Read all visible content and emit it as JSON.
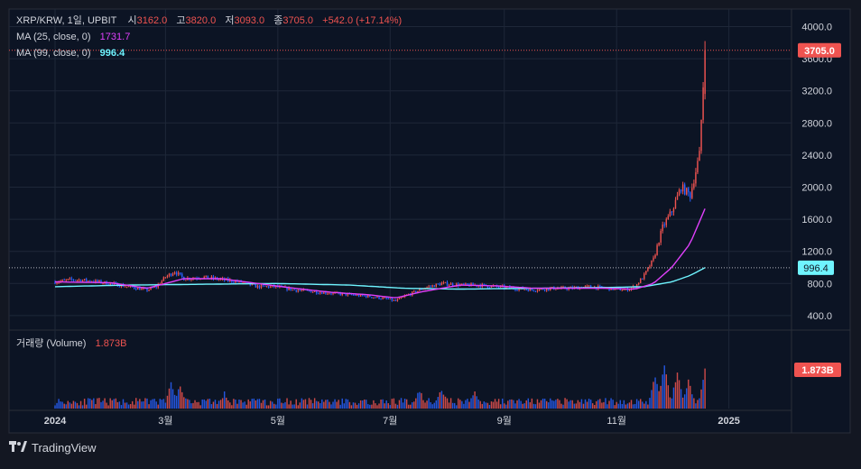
{
  "header": {
    "symbol": "XRP/KRW, 1일, UPBIT",
    "open_label": "시",
    "open": "3162.0",
    "high_label": "고",
    "high": "3820.0",
    "low_label": "저",
    "low": "3093.0",
    "close_label": "종",
    "close": "3705.0",
    "change": "+542.0 (+17.14%)"
  },
  "ma25": {
    "label": "MA (25, close, 0)",
    "value": "1731.7"
  },
  "ma99": {
    "label": "MA (99, close, 0)",
    "value": "996.4"
  },
  "volume_pane": {
    "label": "거래량 (Volume)",
    "value": "1.873B"
  },
  "price_tag": "3705.0",
  "ma99_tag": "996.4",
  "volume_tag": "1.873B",
  "brand": "TradingView",
  "colors": {
    "background": "#0c1424",
    "up": "#ef5350",
    "down": "#2962ff",
    "ma25": "#e040fb",
    "ma99": "#6ff4ff",
    "grid": "#1e2738"
  },
  "chart_data": {
    "type": "candlestick",
    "y_axis_ticks": [
      "4000.0",
      "3600.0",
      "3200.0",
      "2800.0",
      "2400.0",
      "2000.0",
      "1600.0",
      "1200.0",
      "800.0",
      "400.0"
    ],
    "ylim": [
      200,
      4000
    ],
    "x_axis_ticks": [
      "2024",
      "3월",
      "5월",
      "7월",
      "9월",
      "11월",
      "2025"
    ],
    "x_tick_days": [
      0,
      60,
      121,
      182,
      244,
      305,
      366
    ],
    "xlim": [
      -25,
      400
    ],
    "last_day": 353,
    "price_keypoints": [
      [
        0,
        820
      ],
      [
        10,
        850
      ],
      [
        20,
        830
      ],
      [
        30,
        800
      ],
      [
        40,
        760
      ],
      [
        50,
        720
      ],
      [
        55,
        760
      ],
      [
        60,
        880
      ],
      [
        65,
        950
      ],
      [
        70,
        860
      ],
      [
        80,
        880
      ],
      [
        90,
        850
      ],
      [
        100,
        820
      ],
      [
        110,
        760
      ],
      [
        120,
        760
      ],
      [
        130,
        720
      ],
      [
        140,
        700
      ],
      [
        150,
        680
      ],
      [
        160,
        660
      ],
      [
        170,
        640
      ],
      [
        180,
        610
      ],
      [
        185,
        580
      ],
      [
        190,
        640
      ],
      [
        200,
        740
      ],
      [
        210,
        800
      ],
      [
        220,
        780
      ],
      [
        230,
        780
      ],
      [
        240,
        760
      ],
      [
        250,
        740
      ],
      [
        260,
        720
      ],
      [
        270,
        740
      ],
      [
        280,
        740
      ],
      [
        290,
        760
      ],
      [
        300,
        740
      ],
      [
        310,
        720
      ],
      [
        315,
        760
      ],
      [
        320,
        900
      ],
      [
        325,
        1100
      ],
      [
        330,
        1500
      ],
      [
        335,
        1700
      ],
      [
        340,
        2000
      ],
      [
        345,
        1900
      ],
      [
        350,
        2400
      ],
      [
        353,
        3705
      ]
    ],
    "ma25_keypoints": [
      [
        0,
        820
      ],
      [
        30,
        810
      ],
      [
        50,
        740
      ],
      [
        70,
        860
      ],
      [
        90,
        860
      ],
      [
        110,
        800
      ],
      [
        130,
        740
      ],
      [
        150,
        690
      ],
      [
        170,
        660
      ],
      [
        185,
        620
      ],
      [
        200,
        700
      ],
      [
        220,
        780
      ],
      [
        240,
        770
      ],
      [
        260,
        740
      ],
      [
        280,
        740
      ],
      [
        300,
        740
      ],
      [
        315,
        730
      ],
      [
        325,
        800
      ],
      [
        335,
        1000
      ],
      [
        345,
        1300
      ],
      [
        353,
        1731.7
      ]
    ],
    "ma99_keypoints": [
      [
        0,
        760
      ],
      [
        40,
        780
      ],
      [
        80,
        790
      ],
      [
        120,
        800
      ],
      [
        160,
        780
      ],
      [
        190,
        740
      ],
      [
        220,
        730
      ],
      [
        260,
        740
      ],
      [
        300,
        750
      ],
      [
        320,
        760
      ],
      [
        335,
        820
      ],
      [
        345,
        900
      ],
      [
        353,
        996.4
      ]
    ],
    "volume_max": 3.5,
    "volume_ticks_note": "",
    "last_volume": 1.873,
    "volume_spikes": [
      [
        63,
        1.2
      ],
      [
        68,
        1.1
      ],
      [
        92,
        0.7
      ],
      [
        198,
        0.8
      ],
      [
        210,
        0.9
      ],
      [
        228,
        0.8
      ],
      [
        326,
        1.6
      ],
      [
        331,
        2.2
      ],
      [
        338,
        1.8
      ],
      [
        344,
        1.4
      ],
      [
        353,
        1.873
      ]
    ]
  }
}
